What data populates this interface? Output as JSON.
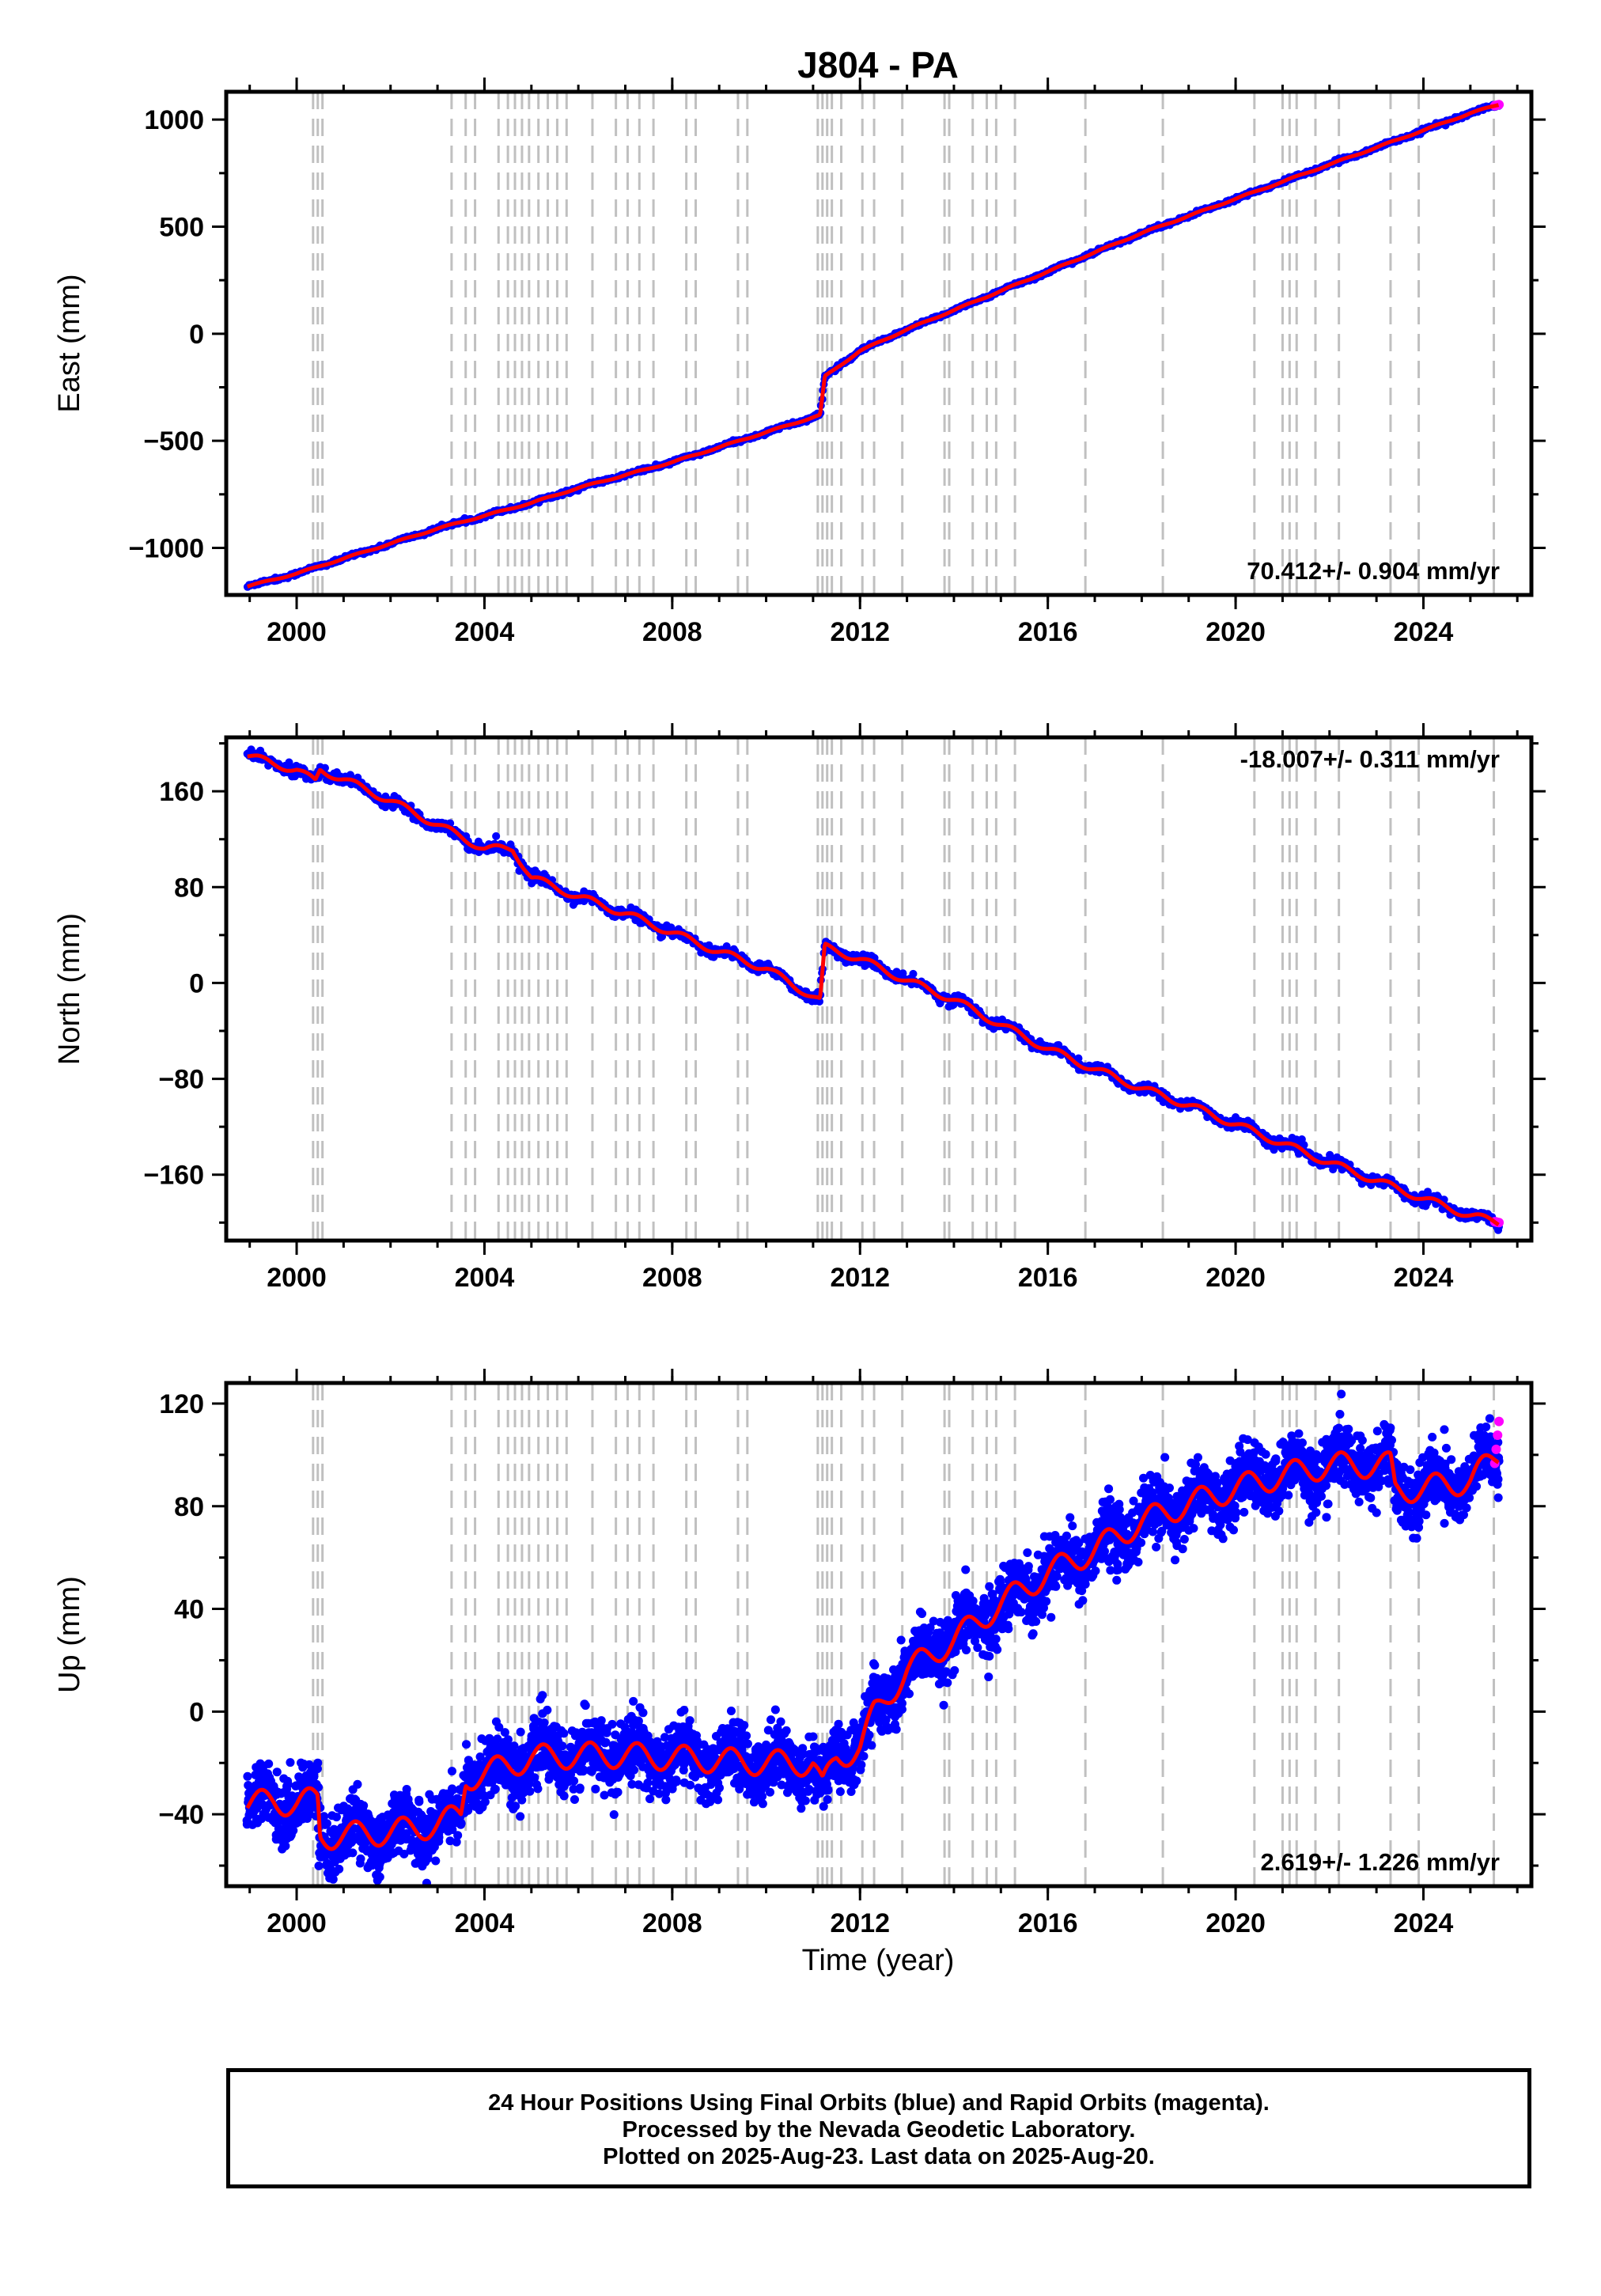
{
  "title": "J804 - PA",
  "xlabel": "Time (year)",
  "xticks": [
    2000,
    2004,
    2008,
    2012,
    2016,
    2020,
    2024
  ],
  "xlim": [
    1998.5,
    2026.3
  ],
  "colors": {
    "final_orbits": "#0000ff",
    "rapid_orbits": "#ff00ff",
    "model": "#ff0000",
    "event_lines": "#c0c0c0"
  },
  "event_lines": [
    2000.35,
    2000.45,
    2000.55,
    2003.3,
    2003.6,
    2003.8,
    2004.3,
    2004.5,
    2004.65,
    2004.8,
    2004.95,
    2005.15,
    2005.35,
    2005.55,
    2005.75,
    2006.3,
    2006.8,
    2007.05,
    2007.3,
    2007.6,
    2008.3,
    2008.5,
    2009.4,
    2009.6,
    2011.1,
    2011.2,
    2011.3,
    2011.4,
    2011.6,
    2012.05,
    2012.3,
    2012.9,
    2013.8,
    2013.9,
    2014.4,
    2014.7,
    2014.9,
    2015.3,
    2016.8,
    2018.45,
    2020.4,
    2021.0,
    2021.15,
    2021.3,
    2021.7,
    2022.2,
    2023.3,
    2023.9,
    2025.5
  ],
  "chart_data": [
    {
      "type": "scatter",
      "name": "east",
      "ylabel": "East (mm)",
      "ylim": [
        -1220,
        1130
      ],
      "yticks": [
        -1000,
        -500,
        0,
        500,
        1000
      ],
      "rate_label": "70.412+/- 0.904 mm/yr",
      "rate_position": "bottom-right",
      "series": [
        {
          "x": [
            1998.95,
            2000.0,
            2001.0,
            2002.0,
            2003.0,
            2004.0,
            2005.0,
            2006.0,
            2007.0,
            2008.0,
            2009.0,
            2010.0,
            2011.15,
            2011.25,
            2012.0,
            2013.0,
            2014.0,
            2015.0,
            2016.0,
            2017.0,
            2018.0,
            2019.0,
            2020.0,
            2021.0,
            2022.0,
            2023.0,
            2024.0,
            2025.0,
            2025.6
          ],
          "y": [
            -1180,
            -1120,
            -1050,
            -980,
            -910,
            -850,
            -790,
            -720,
            -660,
            -600,
            -530,
            -460,
            -380,
            -200,
            -80,
            20,
            110,
            200,
            290,
            380,
            470,
            550,
            630,
            710,
            790,
            870,
            950,
            1030,
            1070
          ]
        }
      ]
    },
    {
      "type": "scatter",
      "name": "north",
      "ylabel": "North (mm)",
      "ylim": [
        -215,
        205
      ],
      "yticks": [
        -160,
        -80,
        0,
        80,
        160
      ],
      "rate_label": "-18.007+/- 0.311 mm/yr",
      "rate_position": "top-right",
      "series": [
        {
          "x": [
            1998.95,
            1999.5,
            2000.0,
            2000.4,
            2000.5,
            2001.0,
            2002.0,
            2003.0,
            2003.5,
            2004.0,
            2004.6,
            2005.0,
            2006.0,
            2007.0,
            2008.0,
            2009.0,
            2010.0,
            2011.15,
            2011.25,
            2012.0,
            2013.0,
            2014.0,
            2015.0,
            2016.0,
            2017.0,
            2018.0,
            2019.0,
            2020.0,
            2021.0,
            2022.0,
            2023.0,
            2024.0,
            2025.0,
            2025.6
          ],
          "y": [
            190,
            183,
            178,
            168,
            178,
            170,
            152,
            132,
            122,
            112,
            112,
            88,
            72,
            58,
            42,
            26,
            12,
            -15,
            30,
            20,
            2,
            -14,
            -35,
            -55,
            -72,
            -88,
            -102,
            -118,
            -134,
            -150,
            -165,
            -180,
            -194,
            -200
          ]
        }
      ]
    },
    {
      "type": "scatter",
      "name": "up",
      "ylabel": "Up (mm)",
      "ylim": [
        -68,
        128
      ],
      "yticks": [
        -40,
        0,
        40,
        80,
        120
      ],
      "rate_label": "2.619+/- 1.226 mm/yr",
      "rate_position": "bottom-right",
      "series": [
        {
          "x": [
            1998.95,
            1999.5,
            2000.0,
            2000.45,
            2000.5,
            2001.0,
            2002.0,
            2003.0,
            2003.5,
            2003.6,
            2004.0,
            2005.0,
            2006.0,
            2007.0,
            2008.0,
            2009.0,
            2010.0,
            2011.0,
            2011.2,
            2011.5,
            2012.0,
            2012.3,
            2013.0,
            2014.0,
            2015.0,
            2016.0,
            2017.0,
            2018.0,
            2019.0,
            2020.0,
            2021.0,
            2022.0,
            2023.0,
            2023.3,
            2023.4,
            2024.0,
            2025.0,
            2025.6
          ],
          "y": [
            -36,
            -35,
            -36,
            -34,
            -49,
            -48,
            -47,
            -44,
            -40,
            -26,
            -24,
            -18,
            -17,
            -17,
            -18,
            -19,
            -20,
            -20,
            -30,
            -18,
            -14,
            -1,
            16,
            28,
            42,
            54,
            63,
            74,
            81,
            87,
            92,
            96,
            96,
            96,
            86,
            87,
            90,
            100
          ]
        }
      ]
    }
  ],
  "caption": {
    "line1": "24 Hour Positions Using Final Orbits (blue) and Rapid Orbits (magenta).",
    "line2": "Processed by the Nevada Geodetic Laboratory.",
    "line3": "Plotted on 2025-Aug-23. Last data on 2025-Aug-20."
  }
}
